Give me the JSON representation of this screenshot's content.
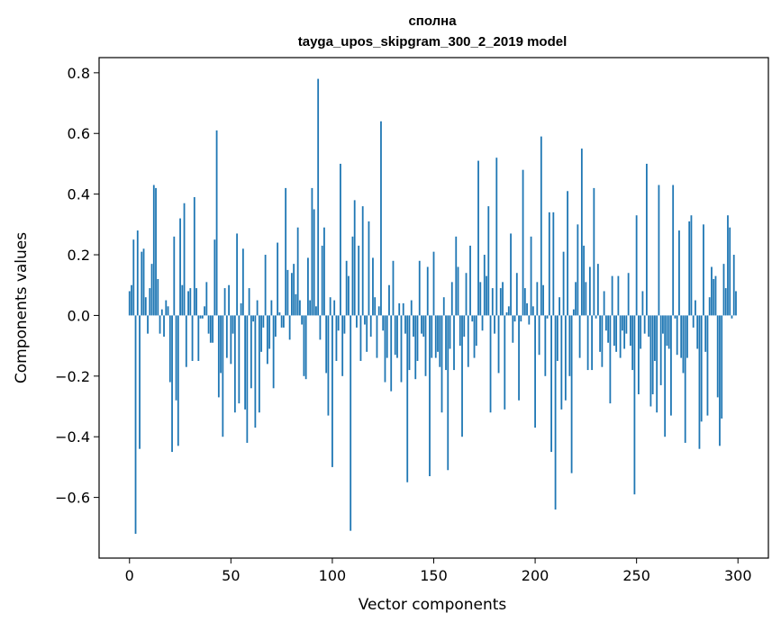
{
  "chart_data": {
    "type": "bar",
    "title": "сполна",
    "subtitle": "tayga_upos_skipgram_300_2_2019 model",
    "xlabel": "Vector components",
    "ylabel": "Components values",
    "xlim": [
      -15,
      315
    ],
    "ylim": [
      -0.8,
      0.85
    ],
    "xticks": [
      0,
      50,
      100,
      150,
      200,
      250,
      300
    ],
    "xtick_labels": [
      "0",
      "50",
      "100",
      "150",
      "200",
      "250",
      "300"
    ],
    "yticks": [
      -0.6,
      -0.4,
      -0.2,
      0.0,
      0.2,
      0.4,
      0.6,
      0.8
    ],
    "ytick_labels": [
      "−0.6",
      "−0.4",
      "−0.2",
      "0.0",
      "0.2",
      "0.4",
      "0.6",
      "0.8"
    ],
    "bar_color": "#1f77b4",
    "grid": false,
    "values": [
      0.08,
      0.1,
      0.25,
      -0.72,
      0.28,
      -0.44,
      0.21,
      0.22,
      0.06,
      -0.06,
      0.09,
      0.17,
      0.43,
      0.42,
      0.12,
      -0.06,
      0.02,
      -0.07,
      0.05,
      0.03,
      -0.22,
      -0.45,
      0.26,
      -0.28,
      -0.43,
      0.32,
      0.1,
      0.37,
      -0.17,
      0.08,
      0.09,
      -0.15,
      0.39,
      0.09,
      -0.15,
      -0.01,
      -0.01,
      0.03,
      0.11,
      -0.06,
      -0.09,
      -0.09,
      0.25,
      0.61,
      -0.27,
      -0.19,
      -0.4,
      0.09,
      -0.14,
      0.1,
      -0.16,
      -0.06,
      -0.32,
      0.27,
      -0.29,
      0.04,
      0.22,
      -0.31,
      -0.42,
      0.09,
      -0.24,
      -0.02,
      -0.37,
      0.05,
      -0.32,
      -0.12,
      -0.04,
      0.2,
      -0.16,
      -0.11,
      0.05,
      -0.24,
      -0.07,
      0.24,
      0.01,
      -0.04,
      -0.04,
      0.42,
      0.15,
      -0.08,
      0.14,
      0.17,
      0.07,
      0.29,
      0.05,
      -0.03,
      -0.2,
      -0.21,
      0.19,
      0.05,
      0.42,
      0.35,
      0.03,
      0.78,
      -0.08,
      0.23,
      0.29,
      -0.19,
      -0.33,
      0.06,
      -0.5,
      0.05,
      -0.15,
      -0.05,
      0.5,
      -0.2,
      -0.06,
      0.18,
      0.13,
      -0.71,
      0.26,
      0.38,
      -0.04,
      0.23,
      -0.15,
      0.36,
      -0.03,
      -0.12,
      0.31,
      -0.07,
      0.19,
      0.06,
      -0.14,
      0.03,
      0.64,
      -0.05,
      -0.22,
      -0.14,
      0.1,
      -0.25,
      0.18,
      -0.13,
      -0.14,
      0.04,
      -0.22,
      0.04,
      -0.06,
      -0.55,
      -0.18,
      0.05,
      -0.07,
      -0.21,
      -0.15,
      0.18,
      -0.06,
      -0.07,
      -0.2,
      0.16,
      -0.53,
      -0.14,
      0.21,
      -0.14,
      -0.12,
      -0.17,
      -0.32,
      0.06,
      -0.18,
      -0.51,
      -0.11,
      0.11,
      -0.18,
      0.26,
      0.16,
      -0.1,
      -0.4,
      -0.07,
      0.14,
      -0.17,
      0.23,
      -0.02,
      -0.14,
      -0.1,
      0.51,
      0.11,
      -0.05,
      0.2,
      0.13,
      0.36,
      -0.32,
      0.09,
      -0.06,
      0.52,
      -0.19,
      0.09,
      0.11,
      -0.31,
      0.01,
      0.03,
      0.27,
      -0.09,
      -0.02,
      0.14,
      -0.28,
      -0.02,
      0.48,
      0.09,
      0.04,
      -0.03,
      0.26,
      0.03,
      -0.37,
      0.11,
      -0.13,
      0.59,
      0.1,
      -0.2,
      -0.01,
      0.34,
      -0.45,
      0.34,
      -0.64,
      -0.15,
      0.06,
      -0.31,
      0.21,
      -0.28,
      0.41,
      -0.2,
      -0.52,
      0.02,
      0.11,
      0.3,
      -0.14,
      0.55,
      0.23,
      0.11,
      -0.18,
      0.16,
      -0.18,
      0.42,
      -0.01,
      0.17,
      -0.12,
      -0.17,
      0.08,
      -0.05,
      -0.09,
      -0.29,
      0.13,
      -0.1,
      -0.12,
      0.13,
      -0.14,
      -0.05,
      -0.11,
      -0.06,
      0.14,
      -0.1,
      -0.18,
      -0.59,
      0.33,
      -0.26,
      -0.11,
      0.08,
      -0.06,
      0.5,
      -0.07,
      -0.3,
      -0.26,
      -0.15,
      -0.32,
      0.43,
      -0.23,
      -0.06,
      -0.4,
      -0.1,
      -0.11,
      -0.33,
      0.43,
      -0.01,
      -0.13,
      0.28,
      -0.14,
      -0.19,
      -0.42,
      -0.14,
      0.31,
      0.33,
      -0.04,
      0.05,
      -0.11,
      -0.44,
      -0.35,
      0.3,
      -0.12,
      -0.33,
      0.06,
      0.16,
      0.12,
      0.13,
      -0.27,
      -0.43,
      -0.34,
      0.17,
      0.09,
      0.33,
      0.29,
      -0.01,
      0.2,
      0.08
    ]
  }
}
